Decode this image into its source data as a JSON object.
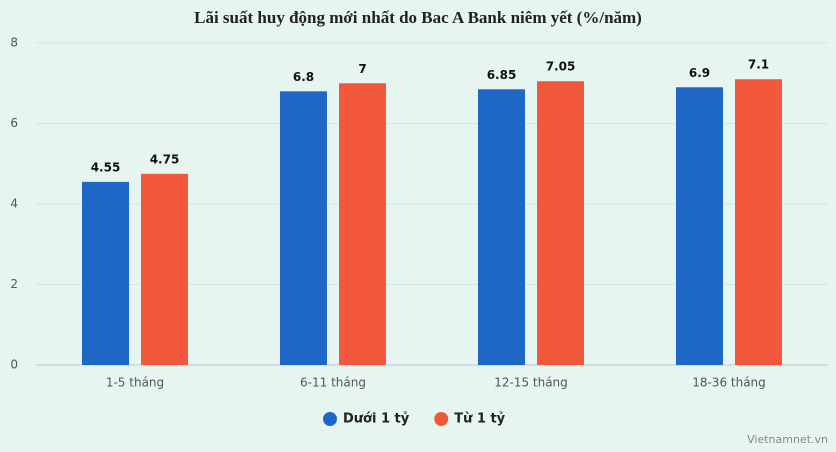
{
  "chart_data": {
    "type": "bar",
    "title": "Lãi suất huy động mới nhất do Bac A Bank niêm yết (%/năm)",
    "categories": [
      "1-5 tháng",
      "6-11 tháng",
      "12-15 tháng",
      "18-36 tháng"
    ],
    "series": [
      {
        "name": "Dưới 1 tỷ",
        "color": "#1f67c6",
        "values": [
          4.55,
          6.8,
          6.85,
          6.9
        ]
      },
      {
        "name": "Từ 1 tỷ",
        "color": "#f2593c",
        "values": [
          4.75,
          7,
          7.05,
          7.1
        ]
      }
    ],
    "ylim": [
      0,
      8
    ],
    "yticks": [
      0,
      2,
      4,
      6,
      8
    ],
    "grid": true,
    "legend": "bottom",
    "source": "Vietnamnet.vn"
  }
}
